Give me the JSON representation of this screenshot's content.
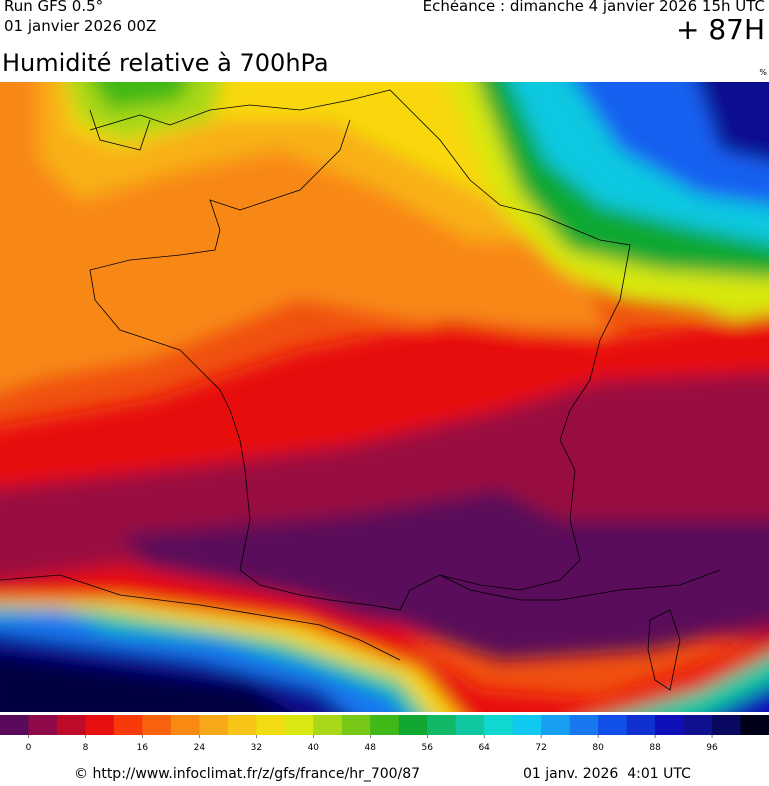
{
  "header": {
    "run": "Run GFS 0.5°",
    "run_date": "01 janvier 2026 00Z",
    "valid": "Echéance : dimanche 4 janvier 2026 15h UTC",
    "lead": "+ 87H",
    "title": "Humidité relative à 700hPa",
    "unit": "%"
  },
  "colorbar": {
    "colors": [
      "#5a0a5a",
      "#8e0a48",
      "#c00a2a",
      "#e81010",
      "#f83a0a",
      "#f8620c",
      "#f88a14",
      "#f8a818",
      "#f8c418",
      "#f0dc10",
      "#d8e810",
      "#a8d818",
      "#78c818",
      "#40b818",
      "#10a830",
      "#10b868",
      "#10c8a0",
      "#10d8d0",
      "#10c8f0",
      "#18a0f0",
      "#1878f0",
      "#1050e8",
      "#1030d0",
      "#1010b8",
      "#101090",
      "#080860",
      "#000018"
    ],
    "ticks": [
      0,
      8,
      16,
      24,
      32,
      40,
      48,
      56,
      64,
      72,
      80,
      88,
      96
    ]
  },
  "footer": {
    "source": "© http://www.infoclimat.fr/z/gfs/france/hr_700/87",
    "generated": "01 janv. 2026  4:01 UTC"
  }
}
